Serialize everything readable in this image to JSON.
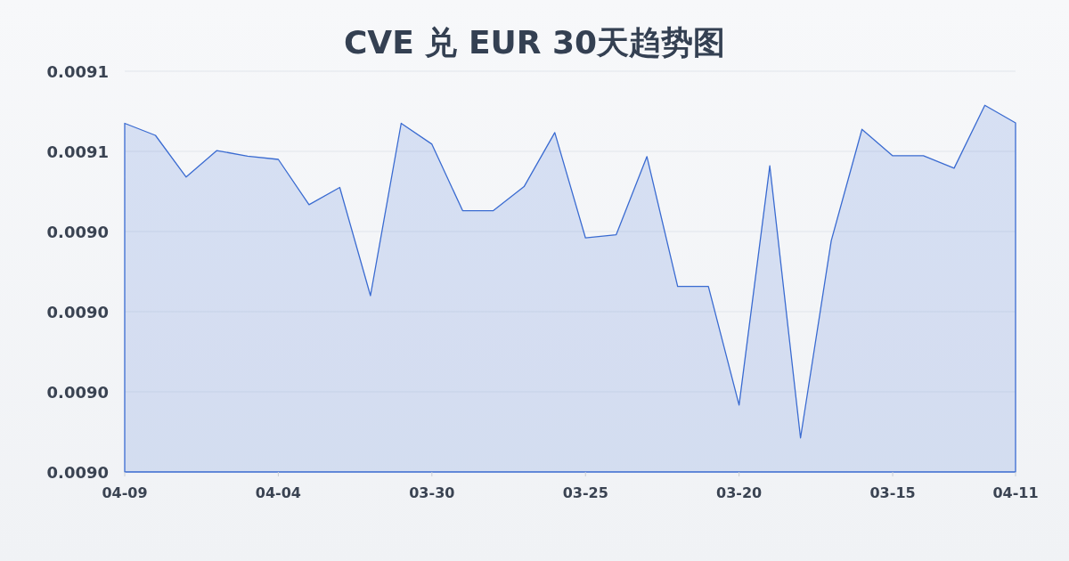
{
  "chart_data": {
    "type": "area",
    "title": "CVE 兑 EUR 30天趋势图",
    "categories": [
      "04-09",
      null,
      null,
      null,
      null,
      "04-04",
      null,
      null,
      null,
      null,
      "03-30",
      null,
      null,
      null,
      null,
      "03-25",
      null,
      null,
      null,
      null,
      "03-20",
      null,
      null,
      null,
      null,
      "03-15",
      null,
      null,
      null,
      "04-11"
    ],
    "series": [
      {
        "color": "#3a6bd1",
        "values": [
          0.009067,
          0.009064,
          0.0090536,
          0.0090602,
          0.0090588,
          0.009058,
          0.0090467,
          0.009051,
          0.009024,
          0.009067,
          0.0090618,
          0.0090452,
          0.0090452,
          0.0090512,
          0.0090647,
          0.0090384,
          0.0090392,
          0.0090587,
          0.0090263,
          0.0090263,
          0.0089967,
          0.0090564,
          0.0089885,
          0.0090377,
          0.0090655,
          0.0090589,
          0.0090589,
          0.0090558,
          0.0090715,
          0.0090671
        ]
      }
    ],
    "ylim": [
      0.00898,
      0.00908
    ],
    "yticks": [
      {
        "value": 0.00898,
        "label": "0.0090"
      },
      {
        "value": 0.009,
        "label": "0.0090"
      },
      {
        "value": 0.00902,
        "label": "0.0090"
      },
      {
        "value": 0.00904,
        "label": "0.0090"
      },
      {
        "value": 0.00906,
        "label": "0.0091"
      },
      {
        "value": 0.00908,
        "label": "0.0091"
      }
    ],
    "grid": "y"
  }
}
